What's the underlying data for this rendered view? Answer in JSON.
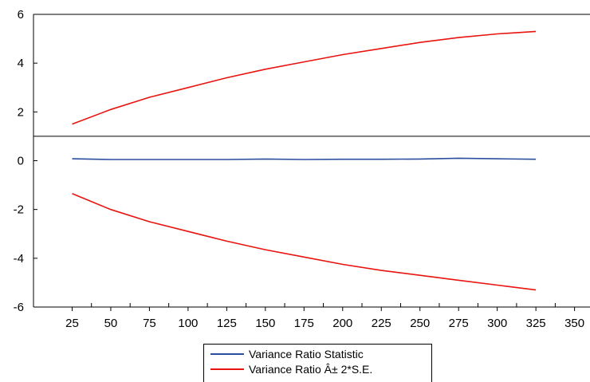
{
  "chart_data": {
    "type": "line",
    "title": "",
    "xlabel": "",
    "ylabel": "",
    "xlim": [
      0,
      360
    ],
    "ylim": [
      -6,
      6
    ],
    "x_ticks": [
      25,
      50,
      75,
      100,
      125,
      150,
      175,
      200,
      225,
      250,
      275,
      300,
      325,
      350
    ],
    "y_ticks": [
      -6,
      -4,
      -2,
      0,
      2,
      4,
      6
    ],
    "reference_line_y": 1,
    "grid": false,
    "legend_position": "bottom",
    "series": [
      {
        "name": "Variance Ratio Statistic",
        "color": "#2b4f9e",
        "x": [
          25,
          50,
          75,
          100,
          125,
          150,
          175,
          200,
          225,
          250,
          275,
          300,
          325
        ],
        "y": [
          0.08,
          0.05,
          0.05,
          0.05,
          0.05,
          0.07,
          0.05,
          0.06,
          0.06,
          0.07,
          0.1,
          0.08,
          0.06
        ]
      },
      {
        "name": "Variance Ratio Â± 2*S.E.",
        "color": "#e8140f",
        "x": [
          25,
          50,
          75,
          100,
          125,
          150,
          175,
          200,
          225,
          250,
          275,
          300,
          325
        ],
        "y": [
          1.5,
          2.1,
          2.6,
          3.0,
          3.4,
          3.75,
          4.05,
          4.35,
          4.6,
          4.85,
          5.05,
          5.2,
          5.3
        ]
      },
      {
        "name": "",
        "color": "#e8140f",
        "x": [
          25,
          50,
          75,
          100,
          125,
          150,
          175,
          200,
          225,
          250,
          275,
          300,
          325
        ],
        "y": [
          -1.35,
          -2.0,
          -2.5,
          -2.9,
          -3.3,
          -3.65,
          -3.95,
          -4.25,
          -4.5,
          -4.7,
          -4.9,
          -5.1,
          -5.3
        ]
      }
    ]
  },
  "legend": {
    "items": [
      {
        "label": "Variance Ratio Statistic",
        "color": "#2b4f9e"
      },
      {
        "label": "Variance Ratio Â± 2*S.E.",
        "color": "#e8140f"
      }
    ]
  }
}
